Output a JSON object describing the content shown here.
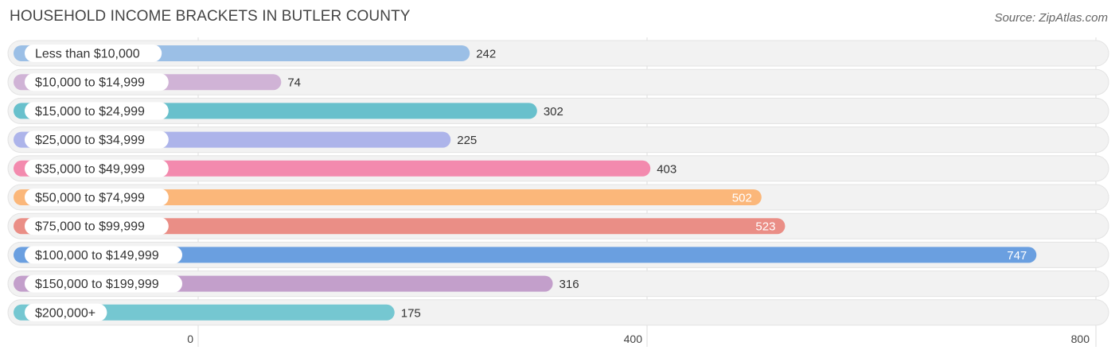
{
  "title": "HOUSEHOLD INCOME BRACKETS IN BUTLER COUNTY",
  "source": "Source: ZipAtlas.com",
  "chart_data": {
    "type": "bar",
    "orientation": "horizontal",
    "title": "HOUSEHOLD INCOME BRACKETS IN BUTLER COUNTY",
    "categories": [
      "Less than $10,000",
      "$10,000 to $14,999",
      "$15,000 to $24,999",
      "$25,000 to $34,999",
      "$35,000 to $49,999",
      "$50,000 to $74,999",
      "$75,000 to $99,999",
      "$100,000 to $149,999",
      "$150,000 to $199,999",
      "$200,000+"
    ],
    "values": [
      242,
      74,
      302,
      225,
      403,
      502,
      523,
      747,
      316,
      175
    ],
    "colors": [
      "#9bbfe6",
      "#d0b3d6",
      "#68c0cc",
      "#adb4ea",
      "#f38aae",
      "#fbb77a",
      "#ea8e86",
      "#6a9fe0",
      "#c39fcb",
      "#75c7d1"
    ],
    "xticks": [
      0,
      400,
      800
    ],
    "xlim": [
      0,
      800
    ],
    "grid": true
  }
}
